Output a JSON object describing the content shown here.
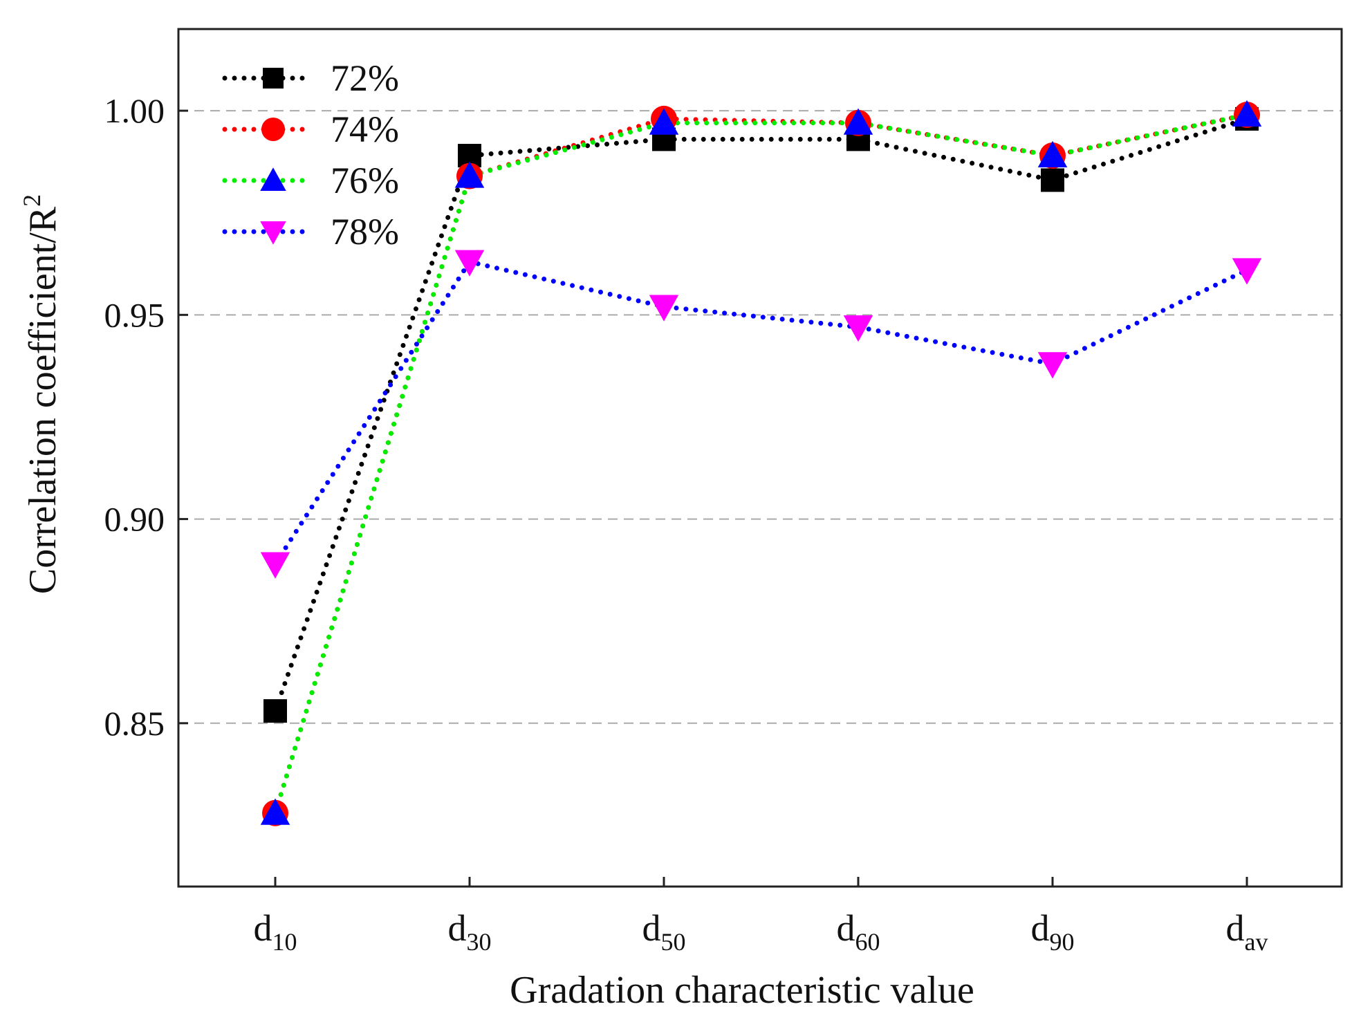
{
  "chart_data": {
    "type": "line",
    "title": "",
    "xlabel": "Gradation characteristic value",
    "ylabel": "Correlation coefficient/R",
    "ylabel_superscript": "2",
    "categories": [
      {
        "base": "d",
        "sub": "10"
      },
      {
        "base": "d",
        "sub": "30"
      },
      {
        "base": "d",
        "sub": "50"
      },
      {
        "base": "d",
        "sub": "60"
      },
      {
        "base": "d",
        "sub": "90"
      },
      {
        "base": "d",
        "sub": "av"
      }
    ],
    "ylim": [
      0.81,
      1.02
    ],
    "yticks": [
      "0.85",
      "0.90",
      "0.95",
      "1.00"
    ],
    "grid": "horizontal dashed",
    "legend_position": "top-left",
    "series": [
      {
        "name": "72%",
        "color": "#000000",
        "marker": "square",
        "values": [
          0.853,
          0.989,
          0.993,
          0.993,
          0.983,
          0.998
        ]
      },
      {
        "name": "74%",
        "color": "#ff0000",
        "marker": "circle",
        "values": [
          0.828,
          0.984,
          0.998,
          0.997,
          0.989,
          0.999
        ]
      },
      {
        "name": "76%",
        "color": "#00ee00",
        "marker": "triangle-up",
        "marker_color": "#0000ff",
        "values": [
          0.828,
          0.984,
          0.997,
          0.997,
          0.989,
          0.999
        ]
      },
      {
        "name": "78%",
        "color": "#0000ff",
        "marker": "triangle-down",
        "marker_color": "#ff00ff",
        "values": [
          0.889,
          0.963,
          0.952,
          0.947,
          0.938,
          0.961
        ]
      }
    ]
  }
}
